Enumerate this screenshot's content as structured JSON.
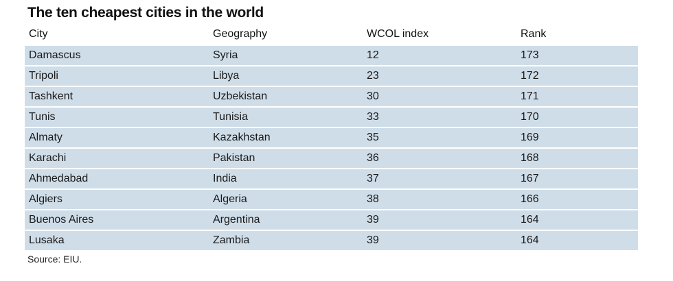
{
  "chart_data": {
    "type": "table",
    "title": "The ten cheapest cities in the world",
    "columns": [
      "City",
      "Geography",
      "WCOL index",
      "Rank"
    ],
    "rows": [
      [
        "Damascus",
        "Syria",
        "12",
        "173"
      ],
      [
        "Tripoli",
        "Libya",
        "23",
        "172"
      ],
      [
        "Tashkent",
        "Uzbekistan",
        "30",
        "171"
      ],
      [
        "Tunis",
        "Tunisia",
        "33",
        "170"
      ],
      [
        "Almaty",
        "Kazakhstan",
        "35",
        "169"
      ],
      [
        "Karachi",
        "Pakistan",
        "36",
        "168"
      ],
      [
        "Ahmedabad",
        "India",
        "37",
        "167"
      ],
      [
        "Algiers",
        "Algeria",
        "38",
        "166"
      ],
      [
        "Buenos Aires",
        "Argentina",
        "39",
        "164"
      ],
      [
        "Lusaka",
        "Zambia",
        "39",
        "164"
      ]
    ],
    "source": "Source: EIU.",
    "row_color": "#cfdde8"
  }
}
